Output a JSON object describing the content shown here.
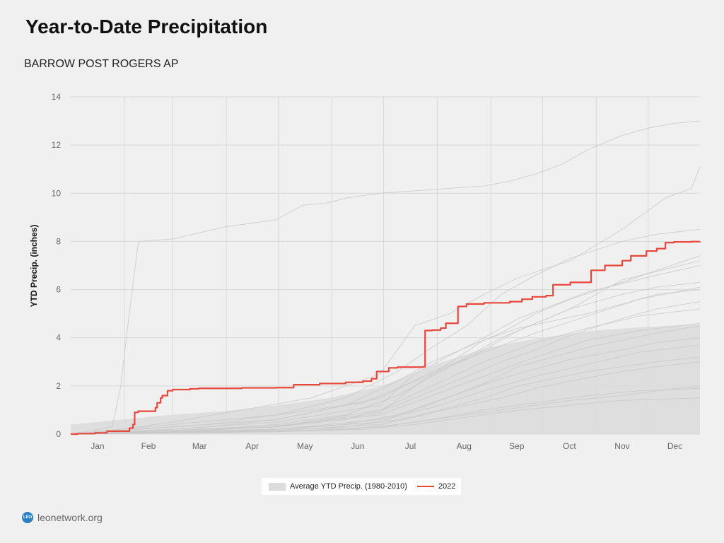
{
  "header": {
    "title": "Year-to-Date Precipitation",
    "subtitle": "BARROW POST ROGERS AP"
  },
  "footer": {
    "logo_text": "LEO",
    "site": "leonetwork.org"
  },
  "legend": {
    "average_label": "Average YTD Precip. (1980-2010)",
    "current_label": "2022"
  },
  "colors": {
    "current": "#e8473c",
    "history": "#c8c8c8",
    "average_area": "#dcdcdc",
    "grid": "#d8d8d8",
    "background": "#f0f0f0"
  },
  "chart_data": {
    "type": "line",
    "ylabel": "YTD Precip. (inches)",
    "xlabel": "",
    "ylim": [
      0,
      14
    ],
    "yticks": [
      0,
      2,
      4,
      6,
      8,
      10,
      12,
      14
    ],
    "xlim": [
      1,
      365
    ],
    "months": [
      "Jan",
      "Feb",
      "Mar",
      "Apr",
      "May",
      "Jun",
      "Jul",
      "Aug",
      "Sep",
      "Oct",
      "Nov",
      "Dec"
    ],
    "grid": true,
    "legend_position": "bottom-center",
    "average": {
      "name": "Average YTD Precip. (1980-2010)",
      "x": [
        1,
        31,
        59,
        90,
        120,
        151,
        181,
        212,
        243,
        273,
        304,
        334,
        365
      ],
      "upper": [
        0.4,
        0.6,
        0.8,
        0.95,
        1.2,
        1.5,
        2.0,
        2.9,
        3.6,
        4.0,
        4.3,
        4.45,
        4.55
      ],
      "lower": [
        0,
        0,
        0,
        0,
        0,
        0,
        0,
        0,
        0,
        0,
        0,
        0,
        0
      ]
    },
    "series": [
      {
        "name": "2022",
        "x": [
          1,
          5,
          15,
          22,
          35,
          37,
          38,
          40,
          50,
          51,
          53,
          54,
          57,
          60,
          70,
          75,
          100,
          120,
          130,
          145,
          160,
          170,
          175,
          178,
          185,
          190,
          205,
          206,
          210,
          215,
          218,
          225,
          230,
          240,
          255,
          262,
          268,
          276,
          280,
          290,
          302,
          310,
          320,
          325,
          334,
          340,
          345,
          350,
          360,
          365
        ],
        "y": [
          0.0,
          0.02,
          0.05,
          0.12,
          0.25,
          0.4,
          0.9,
          0.95,
          1.1,
          1.3,
          1.5,
          1.6,
          1.8,
          1.85,
          1.88,
          1.9,
          1.92,
          1.93,
          2.05,
          2.1,
          2.15,
          2.2,
          2.3,
          2.6,
          2.75,
          2.78,
          2.8,
          4.3,
          4.32,
          4.4,
          4.6,
          5.3,
          5.4,
          5.45,
          5.5,
          5.6,
          5.7,
          5.75,
          6.2,
          6.3,
          6.8,
          7.0,
          7.2,
          7.4,
          7.6,
          7.7,
          7.95,
          7.98,
          7.99,
          8.0
        ]
      }
    ],
    "historical_series": [
      {
        "x": [
          1,
          25,
          30,
          33,
          40,
          41,
          60,
          90,
          120,
          135,
          150,
          160,
          180,
          200,
          220,
          240,
          255,
          270,
          285,
          300,
          320,
          335,
          350,
          365
        ],
        "y": [
          0,
          0.3,
          2.0,
          3.9,
          7.9,
          8.0,
          8.1,
          8.6,
          8.9,
          9.5,
          9.6,
          9.8,
          10.0,
          10.1,
          10.2,
          10.3,
          10.5,
          10.8,
          11.2,
          11.8,
          12.4,
          12.7,
          12.9,
          13.0
        ]
      },
      {
        "x": [
          1,
          30,
          60,
          100,
          140,
          180,
          200,
          220,
          240,
          260,
          290,
          320,
          345,
          360,
          365
        ],
        "y": [
          0,
          0.2,
          0.5,
          1.0,
          1.5,
          2.5,
          4.5,
          5.0,
          5.8,
          6.5,
          7.2,
          8.5,
          9.8,
          10.2,
          11.1
        ]
      },
      {
        "x": [
          1,
          40,
          80,
          120,
          160,
          190,
          210,
          230,
          250,
          270,
          290,
          320,
          340,
          365
        ],
        "y": [
          0,
          0.2,
          0.4,
          0.8,
          1.5,
          2.6,
          3.6,
          4.5,
          5.8,
          6.6,
          7.3,
          8.0,
          8.3,
          8.5
        ]
      },
      {
        "x": [
          1,
          40,
          80,
          120,
          160,
          190,
          210,
          230,
          250,
          270,
          290,
          320,
          340,
          365
        ],
        "y": [
          0,
          0.1,
          0.3,
          0.6,
          1.2,
          2.2,
          3.0,
          3.6,
          4.2,
          5.0,
          5.6,
          6.3,
          6.8,
          7.4
        ]
      },
      {
        "x": [
          1,
          40,
          80,
          120,
          160,
          190,
          210,
          230,
          250,
          270,
          290,
          320,
          340,
          365
        ],
        "y": [
          0,
          0.1,
          0.2,
          0.4,
          0.8,
          1.6,
          2.4,
          3.2,
          4.0,
          4.6,
          5.2,
          5.8,
          6.1,
          6.3
        ]
      },
      {
        "x": [
          1,
          40,
          80,
          120,
          160,
          190,
          210,
          230,
          250,
          270,
          290,
          320,
          340,
          365
        ],
        "y": [
          0,
          0.1,
          0.2,
          0.3,
          0.6,
          1.2,
          1.8,
          2.4,
          3.0,
          3.5,
          4.1,
          4.8,
          5.2,
          5.5
        ]
      },
      {
        "x": [
          1,
          40,
          80,
          120,
          160,
          190,
          210,
          230,
          250,
          270,
          290,
          320,
          340,
          365
        ],
        "y": [
          0,
          0.05,
          0.1,
          0.2,
          0.4,
          0.8,
          1.3,
          1.8,
          2.3,
          2.7,
          3.1,
          3.5,
          3.8,
          4.0
        ]
      },
      {
        "x": [
          1,
          40,
          80,
          120,
          160,
          190,
          210,
          230,
          250,
          270,
          290,
          320,
          340,
          365
        ],
        "y": [
          0,
          0.05,
          0.1,
          0.15,
          0.3,
          0.6,
          0.9,
          1.2,
          1.5,
          1.9,
          2.2,
          2.6,
          2.8,
          3.0
        ]
      },
      {
        "x": [
          1,
          40,
          80,
          120,
          160,
          190,
          210,
          230,
          250,
          270,
          290,
          320,
          340,
          365
        ],
        "y": [
          0,
          0.05,
          0.08,
          0.12,
          0.2,
          0.4,
          0.6,
          0.8,
          1.0,
          1.2,
          1.4,
          1.6,
          1.8,
          2.0
        ]
      },
      {
        "x": [
          1,
          60,
          120,
          180,
          200,
          240,
          260,
          300,
          340,
          365
        ],
        "y": [
          0,
          0.1,
          0.3,
          0.9,
          2.0,
          3.9,
          4.4,
          5.0,
          5.8,
          6.0
        ]
      },
      {
        "x": [
          1,
          60,
          120,
          180,
          200,
          240,
          260,
          300,
          340,
          365
        ],
        "y": [
          0,
          0.2,
          0.5,
          1.2,
          2.5,
          4.0,
          4.8,
          5.9,
          6.6,
          7.0
        ]
      },
      {
        "x": [
          1,
          60,
          120,
          180,
          200,
          240,
          260,
          300,
          340,
          365
        ],
        "y": [
          0,
          0.1,
          0.2,
          0.5,
          1.0,
          2.1,
          2.8,
          3.6,
          4.2,
          4.5
        ]
      },
      {
        "x": [
          1,
          60,
          120,
          180,
          200,
          240,
          260,
          300,
          340,
          365
        ],
        "y": [
          0,
          0.05,
          0.15,
          0.4,
          0.7,
          1.5,
          2.0,
          2.6,
          3.0,
          3.2
        ]
      },
      {
        "x": [
          1,
          60,
          120,
          180,
          210,
          240,
          270,
          300,
          330,
          365
        ],
        "y": [
          0,
          0.1,
          0.3,
          1.0,
          2.0,
          3.0,
          3.8,
          4.4,
          4.9,
          5.2
        ]
      },
      {
        "x": [
          1,
          60,
          120,
          180,
          210,
          240,
          270,
          300,
          330,
          365
        ],
        "y": [
          0,
          0.05,
          0.1,
          0.3,
          0.6,
          1.0,
          1.3,
          1.6,
          1.8,
          1.9
        ]
      },
      {
        "x": [
          1,
          60,
          120,
          180,
          210,
          240,
          270,
          300,
          330,
          365
        ],
        "y": [
          0,
          0.3,
          0.6,
          1.5,
          2.6,
          3.4,
          4.2,
          4.9,
          5.6,
          6.1
        ]
      },
      {
        "x": [
          1,
          60,
          120,
          180,
          210,
          240,
          270,
          300,
          330,
          365
        ],
        "y": [
          0,
          0.15,
          0.35,
          0.8,
          1.6,
          2.4,
          3.2,
          3.9,
          4.3,
          4.6
        ]
      },
      {
        "x": [
          1,
          60,
          120,
          180,
          210,
          240,
          270,
          300,
          330,
          365
        ],
        "y": [
          0,
          0.08,
          0.2,
          0.6,
          1.1,
          1.8,
          2.4,
          2.9,
          3.4,
          3.7
        ]
      },
      {
        "x": [
          1,
          60,
          120,
          170,
          200,
          230,
          260,
          290,
          320,
          365
        ],
        "y": [
          0,
          0.4,
          0.8,
          1.3,
          2.2,
          3.1,
          4.3,
          5.2,
          6.4,
          7.2
        ]
      },
      {
        "x": [
          1,
          60,
          120,
          170,
          200,
          230,
          260,
          290,
          320,
          365
        ],
        "y": [
          0,
          0.05,
          0.1,
          0.2,
          0.4,
          0.7,
          1.0,
          1.2,
          1.4,
          1.5
        ]
      }
    ]
  }
}
